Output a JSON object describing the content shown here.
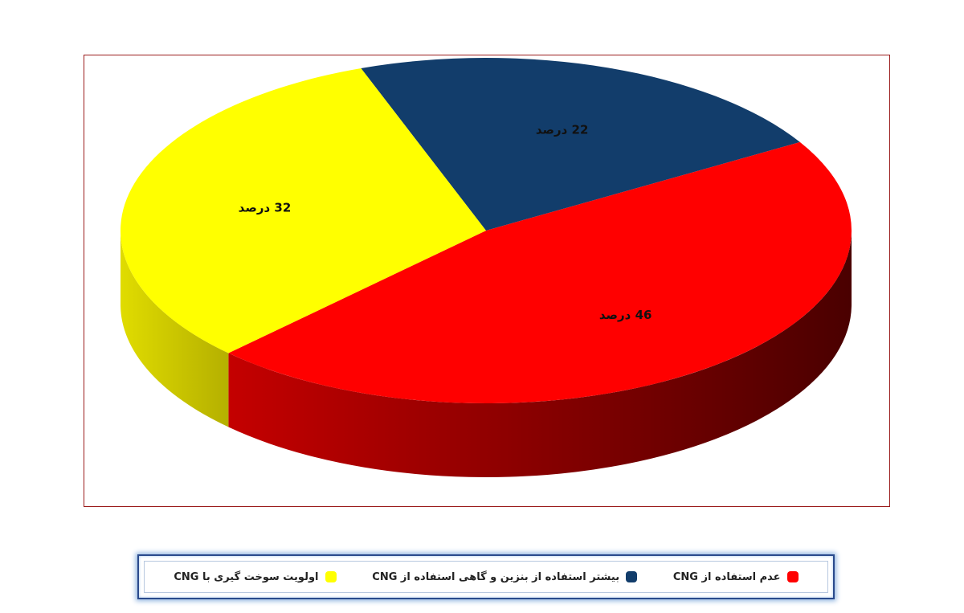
{
  "chart_data": {
    "type": "pie",
    "style": "3d",
    "title": "",
    "slices": [
      {
        "category": "عدم استفاده از CNG",
        "value": 46,
        "label": "46 درصد",
        "color": "#ff0000",
        "side_color": "#8b0000"
      },
      {
        "category": "بیشتر استفاده از بنزین و گاهی استفاده از CNG",
        "value": 22,
        "label": "22 درصد",
        "color": "#123d6b",
        "side_color": "#0b2747"
      },
      {
        "category": "اولویت سوخت گیری با CNG",
        "value": 32,
        "label": "32 درصد",
        "color": "#ffff00",
        "side_color": "#c8c400"
      }
    ],
    "legend_position": "bottom"
  }
}
